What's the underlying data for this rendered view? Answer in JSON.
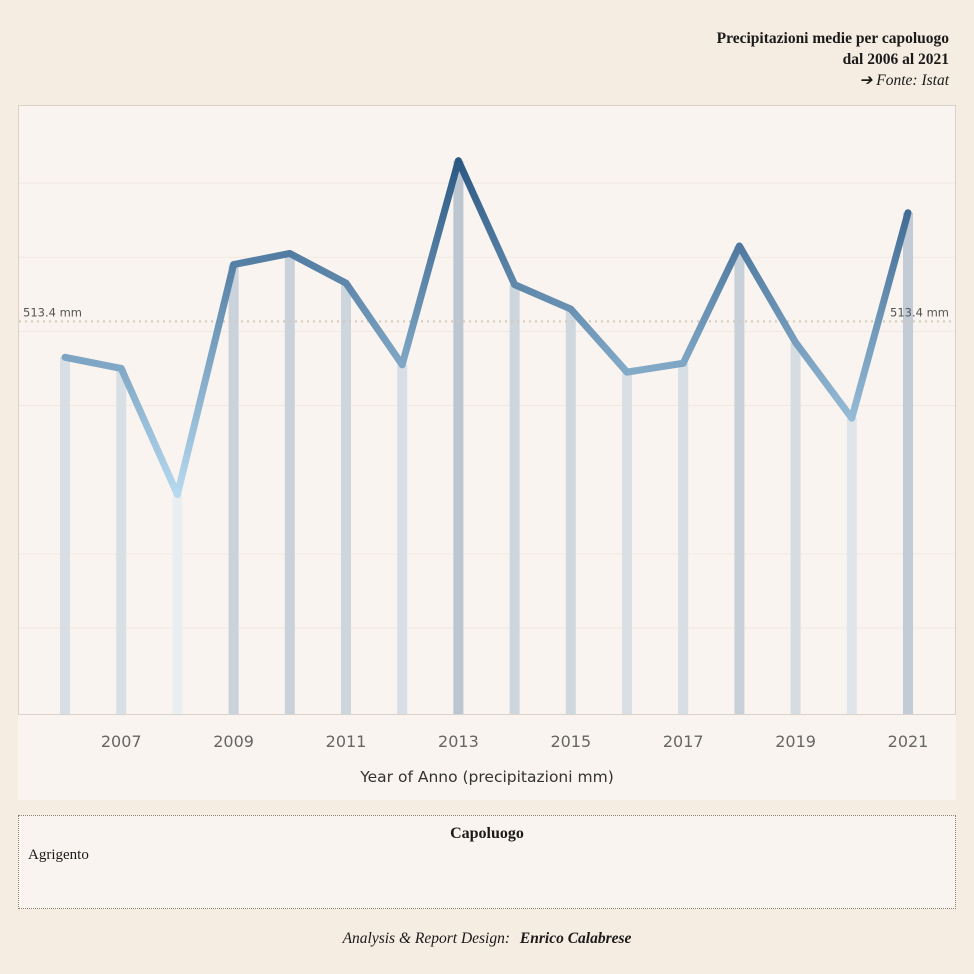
{
  "header": {
    "title_line1": "Precipitazioni medie per capoluogo",
    "title_line2": "dal 2006 al 2021",
    "source": "➔ Fonte: Istat"
  },
  "chart_data": {
    "type": "line",
    "x": [
      2006,
      2007,
      2008,
      2009,
      2010,
      2011,
      2012,
      2013,
      2014,
      2015,
      2016,
      2017,
      2018,
      2019,
      2020,
      2021
    ],
    "values": [
      465,
      450,
      280,
      590,
      605,
      565,
      455,
      730,
      563,
      530,
      445,
      457,
      615,
      485,
      383,
      660
    ],
    "xticks": [
      "2007",
      "2009",
      "2011",
      "2013",
      "2015",
      "2017",
      "2019",
      "2021"
    ],
    "xlabel": "Year of Anno (precipitazioni mm)",
    "ylabel": "",
    "ylim": [
      -16,
      785
    ],
    "reference_line": {
      "value": 513.4,
      "label": "513.4 mm"
    },
    "colors": {
      "low": "#b6d9ef",
      "high": "#2b5883",
      "bar_low": "#e9eef1",
      "bar_high": "#bcc6d1"
    }
  },
  "legend": {
    "title": "Capoluogo",
    "value": "Agrigento"
  },
  "footer": {
    "prefix": "Analysis & Report Design:",
    "author": "Enrico Calabrese"
  }
}
